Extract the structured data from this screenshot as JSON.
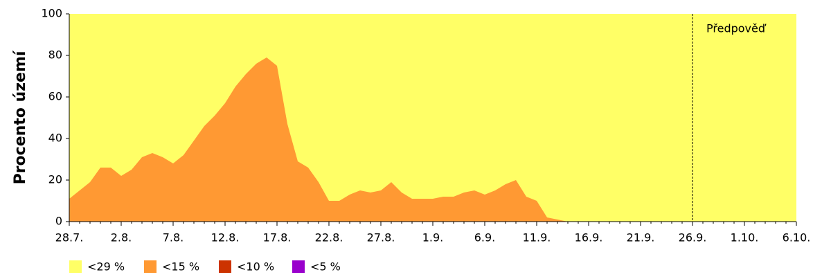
{
  "chart_data": {
    "type": "area",
    "y_label": "Procento území",
    "categories": [
      "28.7.",
      null,
      null,
      null,
      null,
      "2.8.",
      null,
      null,
      null,
      null,
      "7.8.",
      null,
      null,
      null,
      null,
      "12.8.",
      null,
      null,
      null,
      null,
      "17.8.",
      null,
      null,
      null,
      null,
      "22.8.",
      null,
      null,
      null,
      null,
      "27.8.",
      null,
      null,
      null,
      null,
      "1.9.",
      null,
      null,
      null,
      null,
      "6.9.",
      null,
      null,
      null,
      null,
      "11.9.",
      null,
      null,
      null,
      null,
      "16.9.",
      null,
      null,
      null,
      null,
      "21.9.",
      null,
      null,
      null,
      null,
      "26.9.",
      null,
      null,
      null,
      null,
      "1.10.",
      null,
      null,
      null,
      null,
      "6.10."
    ],
    "series": [
      {
        "name": "<29 %",
        "color": "#ffff66",
        "values": [
          100,
          100,
          100,
          100,
          100,
          100,
          100,
          100,
          100,
          100,
          100,
          100,
          100,
          100,
          100,
          100,
          100,
          100,
          100,
          100,
          100,
          100,
          100,
          100,
          100,
          100,
          100,
          100,
          100,
          100,
          100,
          100,
          100,
          100,
          100,
          100,
          100,
          100,
          100,
          100,
          100,
          100,
          100,
          100,
          100,
          100,
          100,
          100,
          100,
          100,
          100,
          100,
          100,
          100,
          100,
          100,
          100,
          100,
          100,
          100,
          100,
          100,
          100,
          100,
          100,
          100,
          100,
          100,
          100,
          100,
          100
        ]
      },
      {
        "name": "<15 %",
        "color": "#ff9933",
        "values": [
          11,
          15,
          19,
          26,
          26,
          22,
          25,
          31,
          33,
          31,
          28,
          32,
          39,
          46,
          51,
          57,
          65,
          71,
          76,
          79,
          75,
          47,
          29,
          26,
          19,
          10,
          10,
          13,
          15,
          14,
          15,
          19,
          14,
          11,
          11,
          11,
          12,
          12,
          14,
          15,
          13,
          15,
          18,
          20,
          12,
          10,
          2,
          1,
          0,
          0,
          0,
          0,
          0,
          0,
          0,
          0,
          0,
          0,
          0,
          0,
          0,
          0,
          0,
          0,
          0,
          0,
          0,
          0,
          0,
          0,
          0
        ]
      },
      {
        "name": "<10 %",
        "color": "#cc3300",
        "values": [
          0,
          0,
          0,
          0,
          0,
          0,
          0,
          0,
          0,
          0,
          0,
          0,
          0,
          0,
          0,
          0,
          0,
          0,
          0,
          0,
          0,
          0,
          0,
          0,
          0,
          0,
          0,
          0,
          0,
          0,
          0,
          0,
          0,
          0,
          0,
          0,
          0,
          0,
          0,
          0,
          0,
          0,
          0,
          0,
          0,
          0,
          0,
          0,
          0,
          0,
          0,
          0,
          0,
          0,
          0,
          0,
          0,
          0,
          0,
          0,
          0,
          0,
          0,
          0,
          0,
          0,
          0,
          0,
          0,
          0,
          0
        ]
      },
      {
        "name": "<5 %",
        "color": "#9900cc",
        "values": [
          0,
          0,
          0,
          0,
          0,
          0,
          0,
          0,
          0,
          0,
          0,
          0,
          0,
          0,
          0,
          0,
          0,
          0,
          0,
          0,
          0,
          0,
          0,
          0,
          0,
          0,
          0,
          0,
          0,
          0,
          0,
          0,
          0,
          0,
          0,
          0,
          0,
          0,
          0,
          0,
          0,
          0,
          0,
          0,
          0,
          0,
          0,
          0,
          0,
          0,
          0,
          0,
          0,
          0,
          0,
          0,
          0,
          0,
          0,
          0,
          0,
          0,
          0,
          0,
          0,
          0,
          0,
          0,
          0,
          0,
          0
        ]
      }
    ],
    "ylim": [
      0,
      100
    ],
    "yticks": [
      0,
      20,
      40,
      60,
      80,
      100
    ],
    "annotation": {
      "text": "Předpověď",
      "x": "26.9."
    }
  }
}
